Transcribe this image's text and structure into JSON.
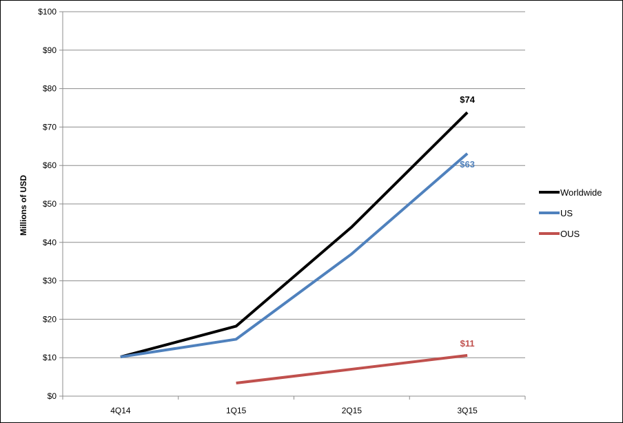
{
  "chart_data": {
    "type": "line",
    "ylabel": "Millions of USD",
    "categories": [
      "4Q14",
      "1Q15",
      "2Q15",
      "3Q15"
    ],
    "ylim": [
      0,
      100
    ],
    "yticks": [
      "$0",
      "$10",
      "$20",
      "$30",
      "$40",
      "$50",
      "$60",
      "$70",
      "$80",
      "$90",
      "$100"
    ],
    "grid": true,
    "legend_position": "right",
    "series": [
      {
        "name": "Worldwide",
        "color": "#000000",
        "values": [
          10.2,
          18.2,
          44.0,
          73.8
        ],
        "end_label": "$74"
      },
      {
        "name": "US",
        "color": "#4f81bd",
        "values": [
          10.2,
          14.8,
          37.0,
          63.1
        ],
        "end_label": "$63"
      },
      {
        "name": "OUS",
        "color": "#c0504d",
        "values": [
          null,
          3.4,
          7.0,
          10.6
        ],
        "end_label": "$11"
      }
    ]
  }
}
